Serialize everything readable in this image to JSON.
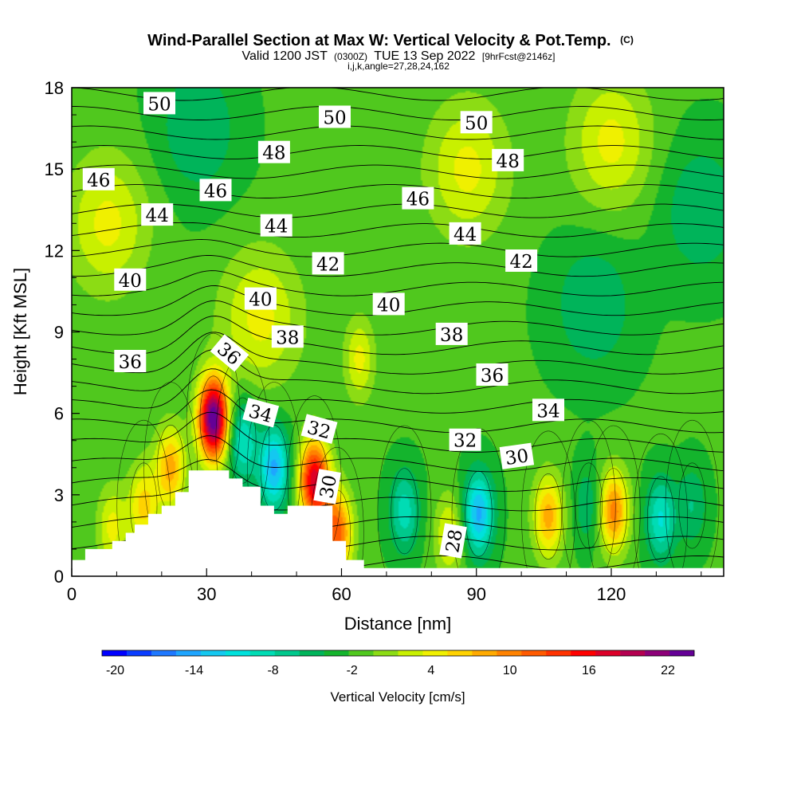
{
  "title": {
    "main": "Wind-Parallel Section at Max W: Vertical Velocity & Pot.Temp.",
    "copyright": "(C)",
    "valid_prefix": "Valid 1200 JST",
    "valid_utc": "(0300Z)",
    "valid_date": "TUE 13 Sep 2022",
    "forecast": "[9hrFcst@2146z]",
    "section_params": "i,j,k,angle=27,28,24,162"
  },
  "chart_data": {
    "type": "heatmap",
    "xlabel": "Distance [nm]",
    "ylabel": "Height [Kft MSL]",
    "xlim": [
      0,
      145
    ],
    "ylim": [
      0,
      18
    ],
    "x_ticks": [
      0,
      30,
      60,
      90,
      120
    ],
    "y_ticks": [
      0,
      3,
      6,
      9,
      12,
      15,
      18
    ],
    "x_tick_labels": [
      "0",
      "30",
      "60",
      "90",
      "120"
    ],
    "y_tick_labels": [
      "0",
      "3",
      "6",
      "9",
      "12",
      "15",
      "18"
    ],
    "terrain": {
      "x": [
        0,
        3,
        3,
        9,
        9,
        12,
        12,
        14,
        14,
        17,
        17,
        20,
        20,
        23,
        23,
        26,
        26,
        35,
        35,
        38,
        38,
        42,
        42,
        45,
        45,
        48,
        48,
        58,
        58,
        61,
        61,
        65,
        65
      ],
      "height_kft": [
        0.6,
        0.6,
        1.0,
        1.0,
        1.3,
        1.3,
        1.6,
        1.6,
        1.9,
        1.9,
        2.3,
        2.3,
        2.6,
        2.6,
        3.1,
        3.1,
        3.9,
        3.9,
        3.6,
        3.6,
        3.3,
        3.3,
        2.6,
        2.6,
        2.3,
        2.3,
        2.6,
        2.6,
        1.3,
        1.3,
        0.6,
        0.6,
        0.3
      ]
    },
    "vertical_velocity": {
      "label": "Vertical Velocity [cm/s]",
      "background": -2,
      "centers": [
        {
          "x": 31.5,
          "z": 5.8,
          "w": 24
        },
        {
          "x": 54,
          "z": 3.5,
          "w": 18
        },
        {
          "x": 22,
          "z": 4.0,
          "w": 8
        },
        {
          "x": 16,
          "z": 2.6,
          "w": 6
        },
        {
          "x": 9,
          "z": 1.8,
          "w": 4
        },
        {
          "x": 59,
          "z": 1.6,
          "w": 12
        },
        {
          "x": 106,
          "z": 2.2,
          "w": 8
        },
        {
          "x": 120.5,
          "z": 2.4,
          "w": 10
        },
        {
          "x": 84,
          "z": 1.5,
          "w": 4
        },
        {
          "x": 38,
          "z": 5.0,
          "w": -10
        },
        {
          "x": 45,
          "z": 4.0,
          "w": -14
        },
        {
          "x": 90.5,
          "z": 2.3,
          "w": -14
        },
        {
          "x": 74,
          "z": 2.4,
          "w": -9
        },
        {
          "x": 115,
          "z": 2.6,
          "w": -6
        },
        {
          "x": 131,
          "z": 2.1,
          "w": -10
        },
        {
          "x": 138,
          "z": 2.6,
          "w": -6
        },
        {
          "x": 28,
          "z": 16.5,
          "w": -6
        },
        {
          "x": 88,
          "z": 15.0,
          "w": 4
        },
        {
          "x": 120,
          "z": 16.0,
          "w": 4
        },
        {
          "x": 140,
          "z": 13.5,
          "w": -6
        },
        {
          "x": 8,
          "z": 13.0,
          "w": 4
        },
        {
          "x": 64,
          "z": 8.0,
          "w": 4
        },
        {
          "x": 116,
          "z": 10.0,
          "w": -6
        },
        {
          "x": 42,
          "z": 9.5,
          "w": 4
        }
      ]
    },
    "potential_temperature": {
      "levels": [
        28,
        29,
        30,
        31,
        32,
        33,
        34,
        35,
        36,
        37,
        38,
        39,
        40,
        41,
        42,
        43,
        44,
        45,
        46,
        47,
        48,
        49,
        50,
        51,
        52
      ],
      "labels": [
        {
          "text": "50",
          "x": 19.5,
          "z": 17.4
        },
        {
          "text": "50",
          "x": 58.5,
          "z": 16.9
        },
        {
          "text": "50",
          "x": 90,
          "z": 16.7
        },
        {
          "text": "48",
          "x": 45,
          "z": 15.6
        },
        {
          "text": "48",
          "x": 97,
          "z": 15.3
        },
        {
          "text": "46",
          "x": 6,
          "z": 14.6
        },
        {
          "text": "46",
          "x": 32,
          "z": 14.2
        },
        {
          "text": "46",
          "x": 77,
          "z": 13.9
        },
        {
          "text": "44",
          "x": 19,
          "z": 13.3
        },
        {
          "text": "44",
          "x": 45.5,
          "z": 12.9
        },
        {
          "text": "44",
          "x": 87.5,
          "z": 12.6
        },
        {
          "text": "42",
          "x": 57,
          "z": 11.5
        },
        {
          "text": "42",
          "x": 100,
          "z": 11.6
        },
        {
          "text": "40",
          "x": 13,
          "z": 10.9
        },
        {
          "text": "40",
          "x": 42,
          "z": 10.2
        },
        {
          "text": "40",
          "x": 70.5,
          "z": 10.0
        },
        {
          "text": "38",
          "x": 48,
          "z": 8.8
        },
        {
          "text": "38",
          "x": 84.5,
          "z": 8.9
        },
        {
          "text": "36",
          "x": 13,
          "z": 7.9
        },
        {
          "text": "36",
          "x": 35,
          "z": 8.2,
          "angle": 40
        },
        {
          "text": "36",
          "x": 93.5,
          "z": 7.4
        },
        {
          "text": "34",
          "x": 42,
          "z": 6.0,
          "angle": 15
        },
        {
          "text": "34",
          "x": 106,
          "z": 6.1
        },
        {
          "text": "32",
          "x": 55,
          "z": 5.4,
          "angle": 15
        },
        {
          "text": "32",
          "x": 87.5,
          "z": 5.0
        },
        {
          "text": "30",
          "x": 99,
          "z": 4.4,
          "angle": -8
        },
        {
          "text": "30",
          "x": 57,
          "z": 3.3,
          "angle": -80
        },
        {
          "text": "28",
          "x": 85,
          "z": 1.3,
          "angle": -80
        }
      ]
    },
    "colorbar": {
      "ticks": [
        "-20",
        "-14",
        "-8",
        "-2",
        "4",
        "10",
        "16",
        "22"
      ],
      "tick_values": [
        -20,
        -14,
        -8,
        -2,
        4,
        10,
        16,
        22
      ],
      "range": [
        -21,
        24
      ],
      "colors": [
        "#0000ff",
        "#0a3cff",
        "#1e78ff",
        "#1ea5ff",
        "#14c8f0",
        "#00e1dc",
        "#00dcb4",
        "#00c88c",
        "#00b45a",
        "#14b42d",
        "#50c81e",
        "#8cdc14",
        "#c8f000",
        "#f0f000",
        "#ffd200",
        "#ffaa00",
        "#ff8200",
        "#ff5a00",
        "#ff3200",
        "#ff0000",
        "#dc0028",
        "#b40050",
        "#8c0078",
        "#640096"
      ],
      "label": "Vertical Velocity [cm/s]"
    }
  }
}
